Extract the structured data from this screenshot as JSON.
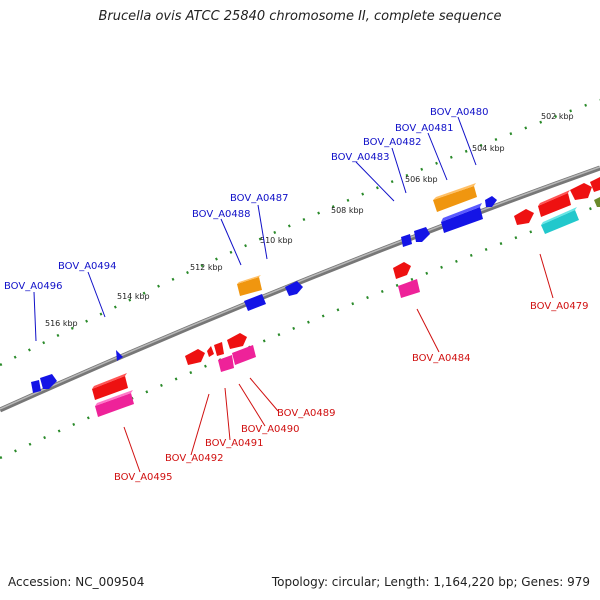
{
  "title": "Brucella ovis ATCC 25840 chromosome II, complete sequence",
  "footer": {
    "accession": "Accession: NC_009504",
    "summary": "Topology: circular; Length: 1,164,220 bp; Genes: 979"
  },
  "colors": {
    "backbone": "#8a8a8a",
    "forward_label": "#1010c8",
    "reverse_label": "#d01010",
    "tick": "#2a8a2a",
    "gene_blue": "#1414e6",
    "gene_red": "#ee1111",
    "gene_pink": "#ee2299",
    "gene_orange": "#f0960f",
    "gene_cyan": "#22c8cc"
  },
  "kbp_labels": [
    "502 kbp",
    "504 kbp",
    "506 kbp",
    "508 kbp",
    "510 kbp",
    "512 kbp",
    "514 kbp",
    "516 kbp"
  ],
  "forward_genes": [
    "BOV_A0480",
    "BOV_A0481",
    "BOV_A0482",
    "BOV_A0483",
    "BOV_A0487",
    "BOV_A0488",
    "BOV_A0494",
    "BOV_A0496"
  ],
  "reverse_genes": [
    "BOV_A0479",
    "BOV_A0484",
    "BOV_A0489",
    "BOV_A0490",
    "BOV_A0491",
    "BOV_A0492",
    "BOV_A0495"
  ]
}
